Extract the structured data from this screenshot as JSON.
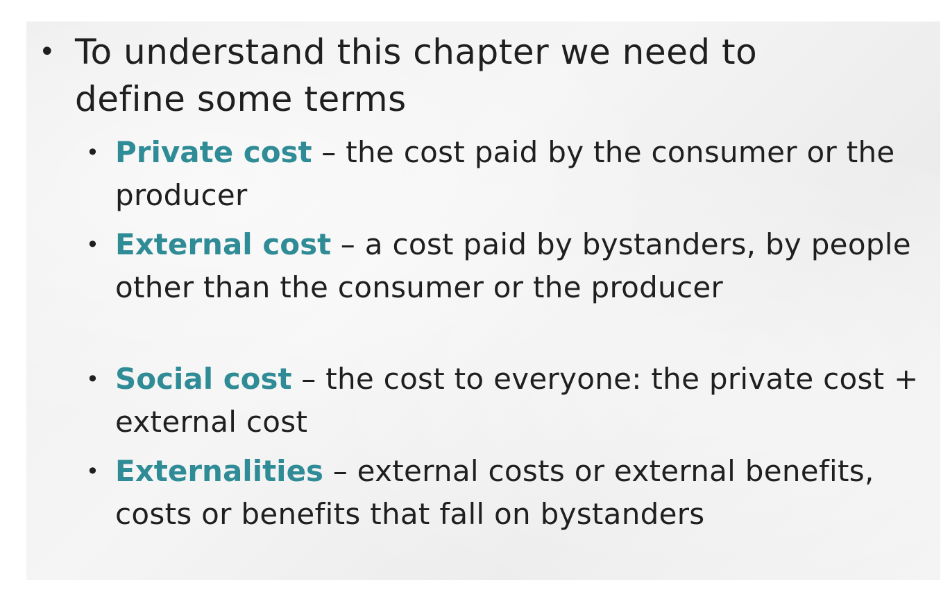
{
  "main_point": {
    "text": "To understand this chapter we need to define some terms"
  },
  "definitions": [
    {
      "term": "Private cost",
      "definition": " – the cost paid by the consumer or the producer"
    },
    {
      "term": "External cost",
      "definition": " – a cost paid by bystanders, by people other than the consumer or the producer"
    },
    {
      "term": "Social cost",
      "definition": " – the cost to everyone: the private cost + external cost"
    },
    {
      "term": "Externalities",
      "definition": " – external costs or external benefits, costs or benefits that fall on bystanders"
    }
  ],
  "colors": {
    "term": "#2f8c96",
    "text": "#1f1f1f",
    "background": "#f0f0f0"
  }
}
